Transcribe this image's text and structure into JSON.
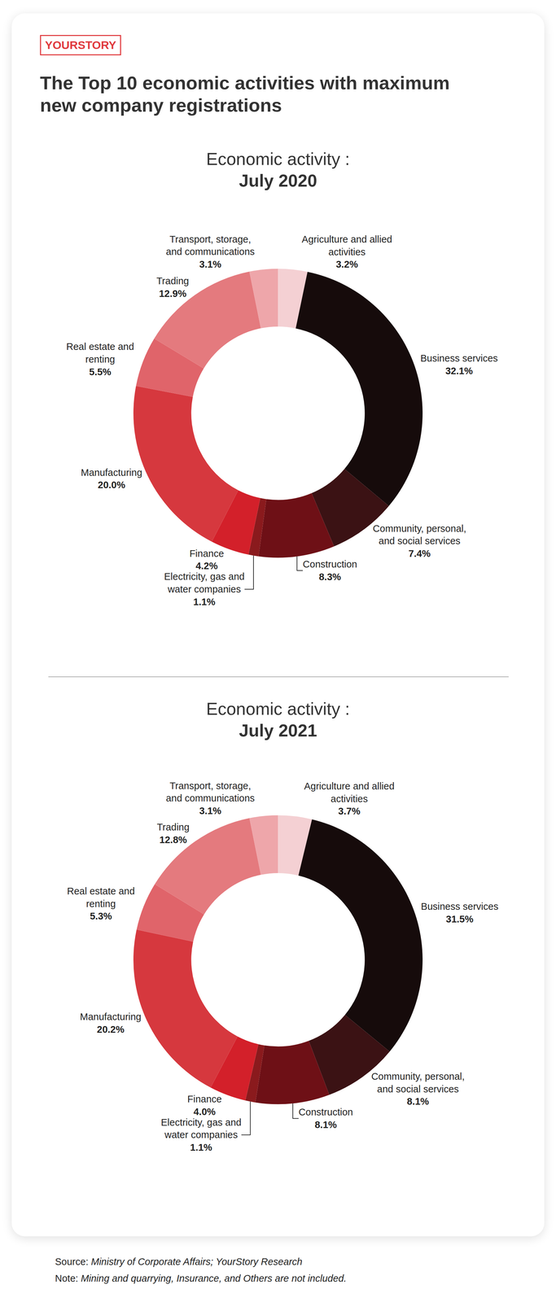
{
  "logo": "YOURSTORY",
  "title": "The Top 10 economic activities with maximum new company registrations",
  "chart_data": [
    {
      "type": "pie",
      "title": "Economic activity :",
      "subtitle": "July 2020",
      "categories": [
        "Agriculture and allied activities",
        "Business services",
        "Community, personal, and social services",
        "Construction",
        "Electricity, gas and water companies",
        "Finance",
        "Manufacturing",
        "Real estate and renting",
        "Trading",
        "Transport, storage, and communications"
      ],
      "values": [
        3.2,
        32.1,
        7.4,
        8.3,
        1.1,
        4.2,
        20.0,
        5.5,
        12.9,
        3.1
      ],
      "value_labels": [
        "3.2%",
        "32.1%",
        "7.4%",
        "8.3%",
        "1.1%",
        "4.2%",
        "20.0%",
        "5.5%",
        "12.9%",
        "3.1%"
      ],
      "colors": [
        "#f4d0d3",
        "#160b0b",
        "#3b1214",
        "#6e1016",
        "#8a1a1d",
        "#d3202a",
        "#d6383e",
        "#e0646a",
        "#e47a7e",
        "#eea6aa"
      ],
      "data_labels": true
    },
    {
      "type": "pie",
      "title": "Economic activity :",
      "subtitle": "July 2021",
      "categories": [
        "Agriculture and allied activities",
        "Business services",
        "Community, personal, and social services",
        "Construction",
        "Electricity, gas and water companies",
        "Finance",
        "Manufacturing",
        "Real estate and renting",
        "Trading",
        "Transport, storage, and communications"
      ],
      "values": [
        3.7,
        31.5,
        8.1,
        8.1,
        1.1,
        4.0,
        20.2,
        5.3,
        12.8,
        3.1
      ],
      "value_labels": [
        "3.7%",
        "31.5%",
        "8.1%",
        "8.1%",
        "1.1%",
        "4.0%",
        "20.2%",
        "5.3%",
        "12.8%",
        "3.1%"
      ],
      "colors": [
        "#f4d0d3",
        "#160b0b",
        "#3b1214",
        "#6e1016",
        "#8a1a1d",
        "#d3202a",
        "#d6383e",
        "#e0646a",
        "#e47a7e",
        "#eea6aa"
      ],
      "data_labels": true
    }
  ],
  "source": {
    "label": "Source:",
    "text": "Ministry of Corporate Affairs; YourStory Research"
  },
  "note": {
    "label": "Note:",
    "text": "Mining and quarrying, Insurance, and Others are not included."
  }
}
